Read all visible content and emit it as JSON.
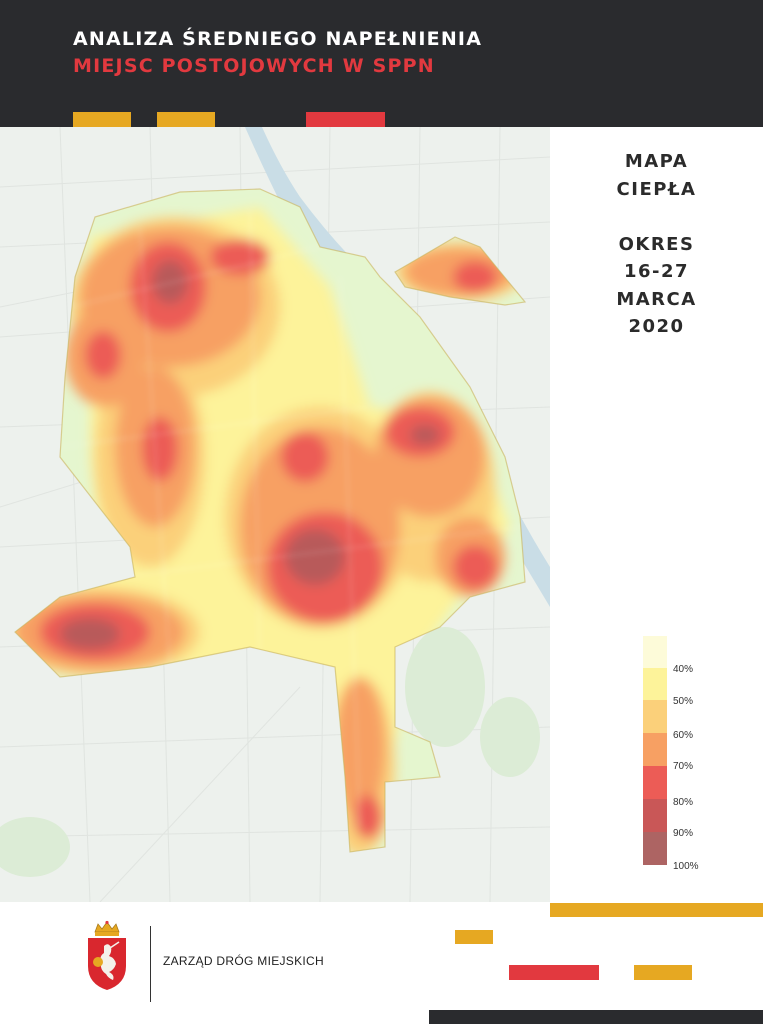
{
  "header": {
    "title_line1": "ANALIZA ŚREDNIEGO NAPEŁNIENIA",
    "title_line2": "MIEJSC POSTOJOWYCH W SPPN"
  },
  "side": {
    "map_title": [
      "MAPA",
      "CIEPŁA"
    ],
    "period": [
      "OKRES",
      "16-27",
      "MARCA",
      "2020"
    ]
  },
  "legend": {
    "items": [
      {
        "label": "40%",
        "color": "#fdfbd9"
      },
      {
        "label": "50%",
        "color": "#fdf39a"
      },
      {
        "label": "60%",
        "color": "#fbd07a"
      },
      {
        "label": "70%",
        "color": "#f7a063"
      },
      {
        "label": "80%",
        "color": "#ec5c56"
      },
      {
        "label": "90%",
        "color": "#c95757"
      },
      {
        "label": "100%",
        "color": "#ad6463"
      }
    ]
  },
  "footer": {
    "org_name": "ZARZĄD DRÓG MIEJSKICH"
  },
  "colors": {
    "header_bg": "#2a2b2e",
    "accent_red": "#e2393f",
    "accent_yellow": "#e6a822"
  },
  "icons": [
    "warsaw-coat-of-arms-icon"
  ]
}
